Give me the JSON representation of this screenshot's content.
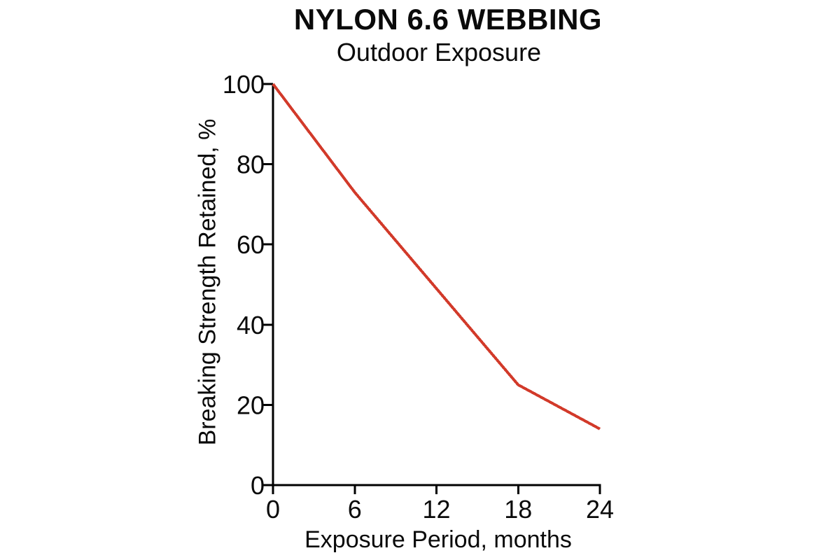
{
  "chart_data": {
    "type": "line",
    "title": "NYLON 6.6 WEBBING",
    "subtitle": "Outdoor Exposure",
    "xlabel": "Exposure Period, months",
    "ylabel": "Breaking Strength Retained, %",
    "x": [
      0,
      6,
      12,
      18,
      24
    ],
    "series": [
      {
        "name": "Breaking Strength Retained",
        "values": [
          100,
          73,
          49,
          25,
          14
        ],
        "color": "#d23a2a"
      }
    ],
    "xlim": [
      0,
      24
    ],
    "ylim": [
      0,
      100
    ],
    "xticks": [
      0,
      6,
      12,
      18,
      24
    ],
    "yticks": [
      0,
      20,
      40,
      60,
      80,
      100
    ],
    "grid": false,
    "legend": "none",
    "axis_color": "#000000",
    "background": "#ffffff"
  }
}
